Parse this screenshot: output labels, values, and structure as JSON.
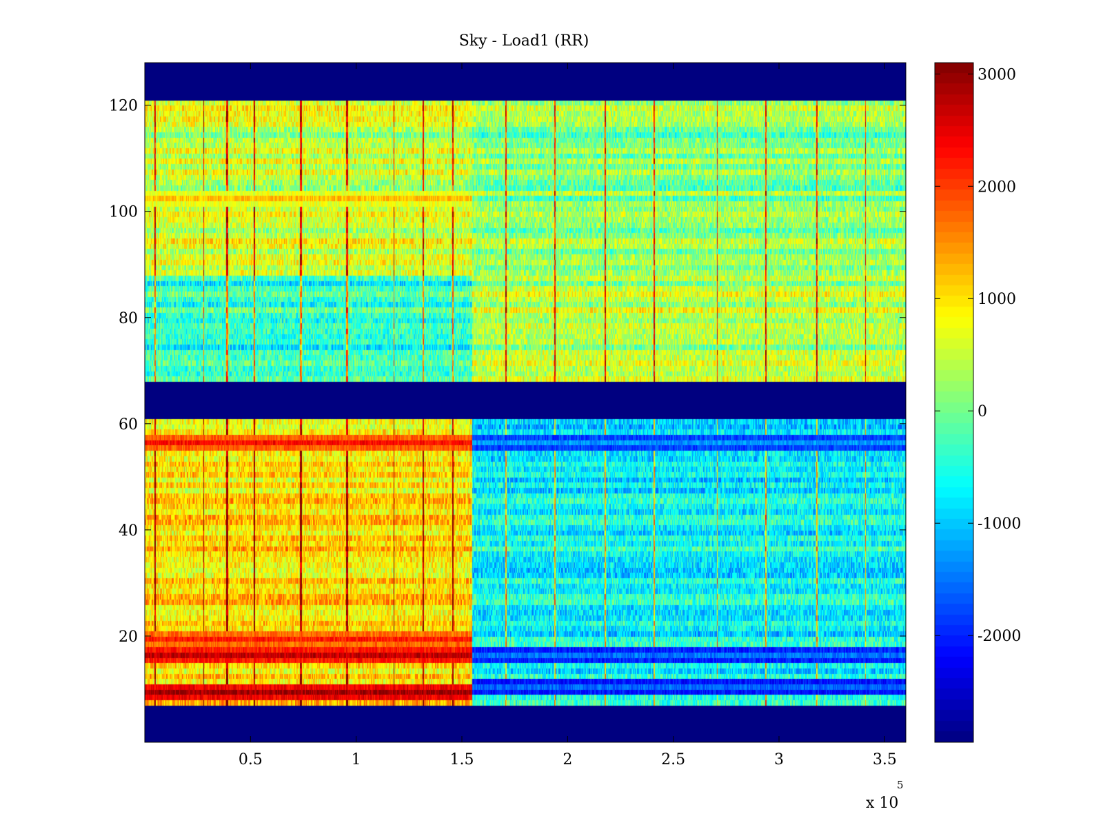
{
  "chart_data": {
    "type": "heatmap",
    "title": "Sky - Load1 (RR)",
    "xlabel": "",
    "ylabel": "",
    "x_multiplier_label": "x 10",
    "x_multiplier_exponent": "5",
    "xlim": [
      0,
      360000
    ],
    "ylim": [
      0,
      128
    ],
    "x_ticks": [
      {
        "value": 50000,
        "label": "0.5"
      },
      {
        "value": 100000,
        "label": "1"
      },
      {
        "value": 150000,
        "label": "1.5"
      },
      {
        "value": 200000,
        "label": "2"
      },
      {
        "value": 250000,
        "label": "2.5"
      },
      {
        "value": 300000,
        "label": "3"
      },
      {
        "value": 350000,
        "label": "3.5"
      }
    ],
    "y_ticks": [
      {
        "value": 20,
        "label": "20"
      },
      {
        "value": 40,
        "label": "40"
      },
      {
        "value": 60,
        "label": "60"
      },
      {
        "value": 80,
        "label": "80"
      },
      {
        "value": 100,
        "label": "100"
      },
      {
        "value": 120,
        "label": "120"
      }
    ],
    "colormap": "jet",
    "clim": [
      -2950,
      3100
    ],
    "colorbar": {
      "placement": "right",
      "ticks": [
        {
          "value": 3000,
          "label": "3000"
        },
        {
          "value": 2000,
          "label": "2000"
        },
        {
          "value": 1000,
          "label": "1000"
        },
        {
          "value": 0,
          "label": "0"
        },
        {
          "value": -1000,
          "label": "-1000"
        },
        {
          "value": -2000,
          "label": "-2000"
        }
      ]
    },
    "masked_rows_value": -2950,
    "masked_row_ranges": [
      [
        0,
        7
      ],
      [
        61,
        68
      ],
      [
        121,
        128
      ]
    ],
    "time_split_x": 155000,
    "regions": [
      {
        "rows": [
          7,
          61
        ],
        "x": [
          0,
          155000
        ],
        "level": 1000
      },
      {
        "rows": [
          7,
          61
        ],
        "x": [
          155000,
          360000
        ],
        "level": -700
      },
      {
        "rows": [
          68,
          88
        ],
        "x": [
          0,
          155000
        ],
        "level": -400
      },
      {
        "rows": [
          68,
          88
        ],
        "x": [
          155000,
          360000
        ],
        "level": 400
      },
      {
        "rows": [
          88,
          121
        ],
        "x": [
          0,
          155000
        ],
        "level": 500
      },
      {
        "rows": [
          88,
          121
        ],
        "x": [
          155000,
          360000
        ],
        "level": 100
      }
    ],
    "hot_rows": [
      {
        "row": 9,
        "x": [
          0,
          155000
        ],
        "value": 2900
      },
      {
        "row": 16,
        "x": [
          0,
          155000
        ],
        "value": 2700
      },
      {
        "row": 19,
        "x": [
          0,
          155000
        ],
        "value": 2200
      },
      {
        "row": 56,
        "x": [
          0,
          155000
        ],
        "value": 2300
      },
      {
        "row": 102,
        "x": [
          0,
          155000
        ],
        "value": 1200
      },
      {
        "row": 10,
        "x": [
          155000,
          360000
        ],
        "value": -1600
      },
      {
        "row": 16,
        "x": [
          155000,
          360000
        ],
        "value": -1500
      },
      {
        "row": 56,
        "x": [
          155000,
          360000
        ],
        "value": -1300
      }
    ],
    "spike_columns_x": [
      5000,
      28000,
      39000,
      52000,
      74000,
      96000,
      118000,
      132000,
      146000,
      171000,
      194000,
      218000,
      241000,
      271000,
      294000,
      318000,
      341000
    ]
  }
}
